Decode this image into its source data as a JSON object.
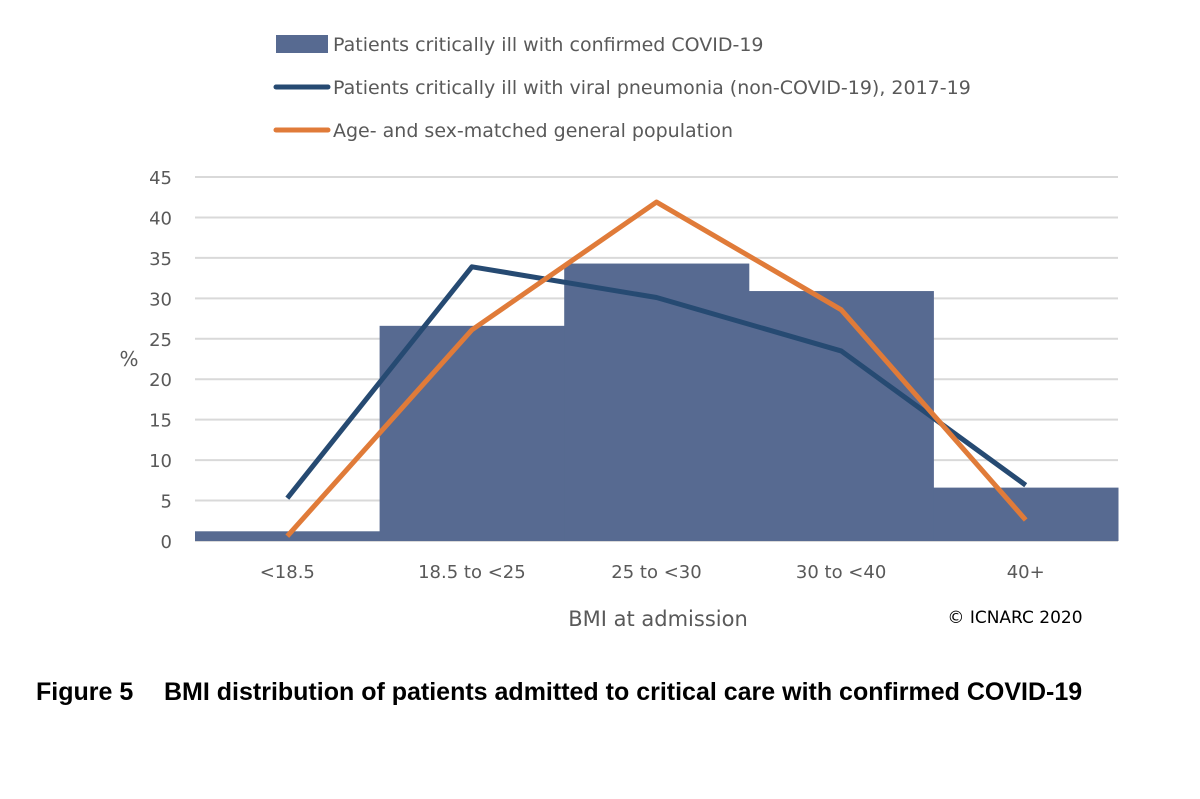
{
  "chart_data": {
    "type": "bar",
    "categories": [
      "<18.5",
      "18.5 to <25",
      "25 to <30",
      "30 to <40",
      "40+"
    ],
    "series": [
      {
        "name": "Patients critically ill with confirmed COVID-19",
        "kind": "bar",
        "color": "#576a91",
        "values": [
          1.2,
          26.6,
          34.3,
          30.9,
          6.6
        ]
      },
      {
        "name": "Patients critically ill with viral pneumonia (non-COVID-19), 2017-19",
        "kind": "line",
        "color": "#264a72",
        "values": [
          5.3,
          33.9,
          30.1,
          23.5,
          6.9
        ]
      },
      {
        "name": "Age- and sex-matched general population",
        "kind": "line",
        "color": "#e07b39",
        "values": [
          0.6,
          26.1,
          41.9,
          28.6,
          2.6
        ]
      }
    ],
    "xlabel": "BMI at admission",
    "ylabel": "%",
    "ylim": [
      0,
      45
    ],
    "yticks": [
      "0",
      "5",
      "10",
      "15",
      "20",
      "25",
      "30",
      "35",
      "40",
      "45"
    ],
    "grid": true,
    "legend_position": "top",
    "annotation": "© ICNARC 2020"
  },
  "caption": {
    "number": "Figure 5",
    "text": "BMI distribution of patients admitted to critical care with confirmed COVID-19"
  }
}
